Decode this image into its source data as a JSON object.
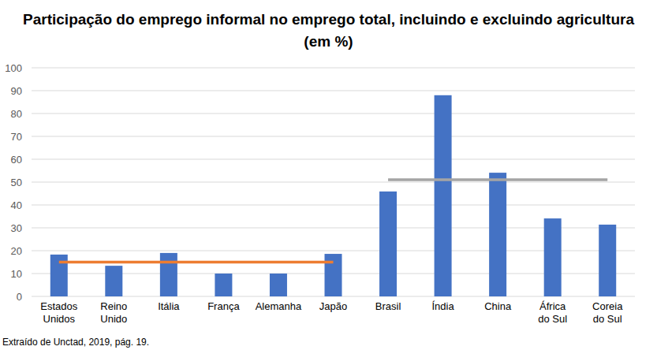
{
  "chart_data": {
    "type": "bar",
    "title": "Participação do emprego informal no emprego total, incluindo e excluindo agricultura (em %)",
    "source": "Extraído de Unctad, 2019, pág. 19.",
    "categories": [
      "Estados Unidos",
      "Reino Unido",
      "Itália",
      "França",
      "Alemanha",
      "Japão",
      "Brasil",
      "Índia",
      "China",
      "África do Sul",
      "Coreia do Sul"
    ],
    "series": [
      {
        "type": "bar",
        "color": "#4472c4",
        "values": [
          18.3,
          13.4,
          19,
          10,
          10,
          18.6,
          45.9,
          88,
          54.1,
          34.1,
          31.4
        ]
      },
      {
        "type": "line",
        "color": "#ed7d31",
        "values": [
          15,
          15,
          15,
          15,
          15,
          15,
          null,
          null,
          null,
          null,
          null
        ]
      },
      {
        "type": "line",
        "color": "#a5a5a5",
        "values": [
          null,
          null,
          null,
          null,
          null,
          null,
          51,
          51,
          51,
          51,
          51
        ]
      }
    ],
    "ylim": [
      0,
      100
    ],
    "yticks": [
      0,
      10,
      20,
      30,
      40,
      50,
      60,
      70,
      80,
      90,
      100
    ],
    "grid": true
  }
}
